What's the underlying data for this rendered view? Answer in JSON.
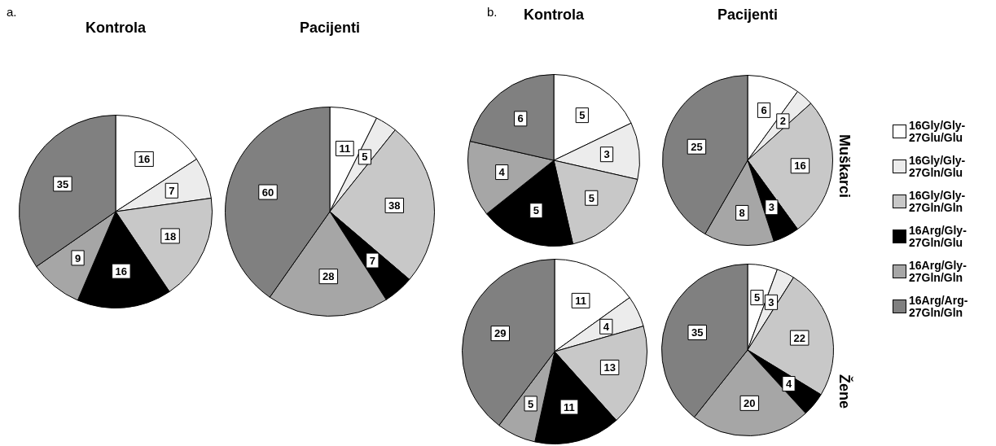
{
  "chart_data": [
    {
      "type": "pie",
      "title": "Kontrola",
      "annotations": [
        "a."
      ],
      "legend": "right",
      "categories": [
        "16Gly/Gly-27Glu/Glu",
        "16Gly/Gly-27Gln/Glu",
        "16Gly/Gly-27Gln/Gln",
        "16Arg/Gly-27Gln/Glu",
        "16Arg/Gly-27Gln/Gln",
        "16Arg/Arg-27Gln/Gln"
      ],
      "values": [
        16,
        7,
        18,
        16,
        9,
        35
      ],
      "colors": [
        "#ffffff",
        "#ececec",
        "#c8c8c8",
        "#000000",
        "#a6a6a6",
        "#808080"
      ],
      "data_labels": true
    },
    {
      "type": "pie",
      "title": "Pacijenti",
      "categories": [
        null,
        null,
        null,
        null,
        null,
        null
      ],
      "values": [
        11,
        5,
        38,
        7,
        28,
        60
      ],
      "colors": [
        "#ffffff",
        "#ececec",
        "#c8c8c8",
        "#000000",
        "#a6a6a6",
        "#808080"
      ],
      "data_labels": true
    },
    {
      "type": "pie",
      "title": "Kontrola",
      "annotations": [
        "b."
      ],
      "categories": [
        null,
        null,
        null,
        null,
        null,
        null
      ],
      "values": [
        5,
        3,
        5,
        5,
        4,
        6
      ],
      "colors": [
        "#ffffff",
        "#ececec",
        "#c8c8c8",
        "#000000",
        "#a6a6a6",
        "#808080"
      ],
      "data_labels": true
    },
    {
      "type": "pie",
      "title": "Pacijenti",
      "subtitle": "Muškarci",
      "categories": [
        null,
        null,
        null,
        null,
        null,
        null
      ],
      "values": [
        6,
        2,
        16,
        3,
        8,
        25
      ],
      "colors": [
        "#ffffff",
        "#ececec",
        "#c8c8c8",
        "#000000",
        "#a6a6a6",
        "#808080"
      ],
      "data_labels": true
    },
    {
      "type": "pie",
      "categories": [
        null,
        null,
        null,
        null,
        null,
        null
      ],
      "values": [
        11,
        4,
        13,
        11,
        5,
        29
      ],
      "colors": [
        "#ffffff",
        "#ececec",
        "#c8c8c8",
        "#000000",
        "#a6a6a6",
        "#808080"
      ],
      "data_labels": true
    },
    {
      "type": "pie",
      "subtitle": "Žene",
      "categories": [
        null,
        null,
        null,
        null,
        null,
        null
      ],
      "values": [
        5,
        3,
        22,
        4,
        20,
        35
      ],
      "colors": [
        "#ffffff",
        "#ececec",
        "#c8c8c8",
        "#000000",
        "#a6a6a6",
        "#808080"
      ],
      "data_labels": true
    }
  ]
}
